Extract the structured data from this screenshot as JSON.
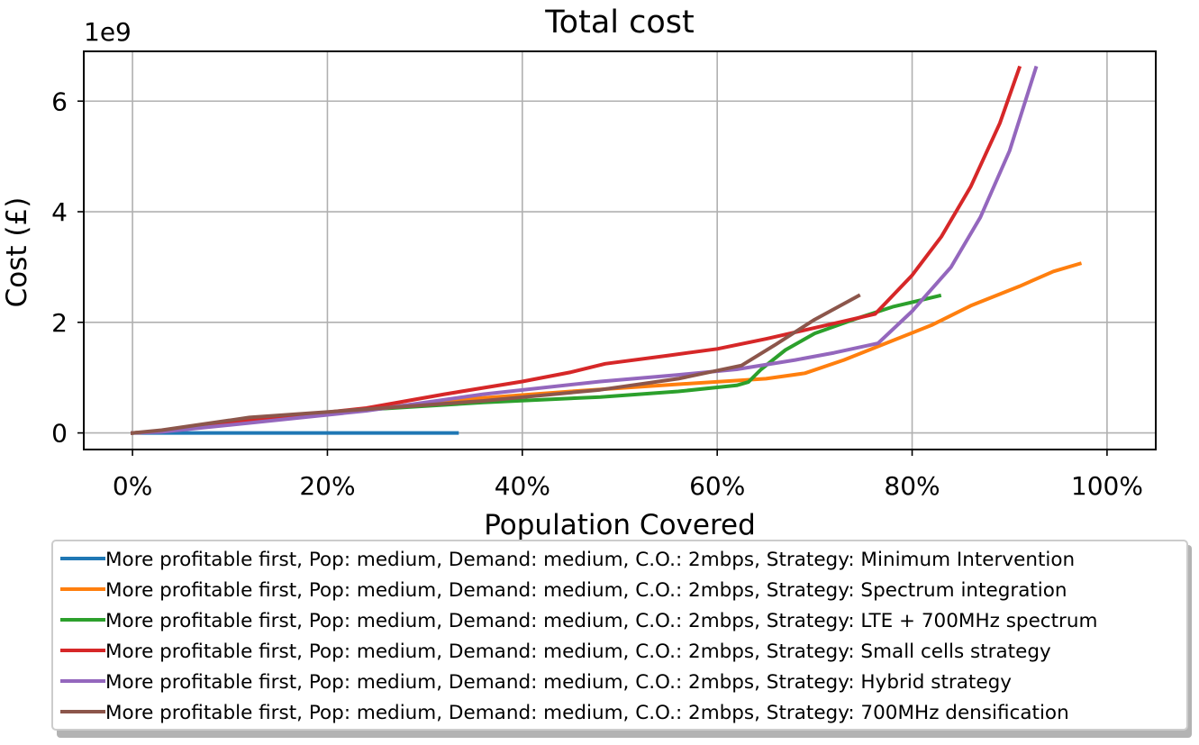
{
  "chart_data": {
    "type": "line",
    "title": "Total cost",
    "xlabel": "Population Covered",
    "ylabel": "Cost (£)",
    "y_offset_label": "1e9",
    "xlim": [
      -0.05,
      1.05
    ],
    "ylim": [
      -0.3,
      6.9
    ],
    "x_ticks": [
      0,
      0.2,
      0.4,
      0.6,
      0.8,
      1.0
    ],
    "x_tick_labels": [
      "0%",
      "20%",
      "40%",
      "60%",
      "80%",
      "100%"
    ],
    "y_ticks": [
      0,
      2,
      4,
      6
    ],
    "y_tick_labels": [
      "0",
      "2",
      "4",
      "6"
    ],
    "grid": true,
    "legend_position": "below",
    "series": [
      {
        "name": "More profitable first, Pop: medium, Demand: medium, C.O.: 2mbps, Strategy: Minimum Intervention",
        "color": "#1f77b4",
        "x": [
          0,
          0.05,
          0.1,
          0.2,
          0.3,
          0.333
        ],
        "y": [
          0,
          0,
          0,
          0,
          0,
          0
        ]
      },
      {
        "name": "More profitable first, Pop: medium, Demand: medium, C.O.: 2mbps, Strategy: Spectrum integration",
        "color": "#ff7f0e",
        "x": [
          0,
          0.03,
          0.12,
          0.25,
          0.35,
          0.45,
          0.55,
          0.65,
          0.69,
          0.73,
          0.77,
          0.82,
          0.86,
          0.91,
          0.945,
          0.972
        ],
        "y": [
          0,
          0.03,
          0.25,
          0.45,
          0.62,
          0.75,
          0.87,
          0.98,
          1.08,
          1.32,
          1.6,
          1.95,
          2.3,
          2.65,
          2.92,
          3.06
        ]
      },
      {
        "name": "More profitable first, Pop: medium, Demand: medium, C.O.: 2mbps, Strategy: LTE + 700MHz spectrum",
        "color": "#2ca02c",
        "x": [
          0,
          0.03,
          0.12,
          0.24,
          0.36,
          0.48,
          0.56,
          0.62,
          0.632,
          0.645,
          0.67,
          0.7,
          0.74,
          0.78,
          0.828
        ],
        "y": [
          0,
          0.03,
          0.22,
          0.42,
          0.55,
          0.65,
          0.75,
          0.86,
          0.92,
          1.15,
          1.5,
          1.8,
          2.05,
          2.28,
          2.48
        ]
      },
      {
        "name": "More profitable first, Pop: medium, Demand: medium, C.O.: 2mbps, Strategy: Small cells strategy",
        "color": "#d62728",
        "x": [
          0,
          0.03,
          0.12,
          0.24,
          0.32,
          0.4,
          0.45,
          0.485,
          0.55,
          0.6,
          0.65,
          0.7,
          0.73,
          0.762,
          0.8,
          0.83,
          0.86,
          0.89,
          0.91
        ],
        "y": [
          0,
          0.03,
          0.22,
          0.45,
          0.7,
          0.93,
          1.1,
          1.25,
          1.4,
          1.52,
          1.7,
          1.9,
          2.02,
          2.15,
          2.85,
          3.55,
          4.45,
          5.6,
          6.6
        ]
      },
      {
        "name": "More profitable first, Pop: medium, Demand: medium, C.O.: 2mbps, Strategy: Hybrid strategy",
        "color": "#9467bd",
        "x": [
          0,
          0.03,
          0.12,
          0.24,
          0.36,
          0.48,
          0.56,
          0.62,
          0.68,
          0.72,
          0.765,
          0.8,
          0.84,
          0.87,
          0.9,
          0.927
        ],
        "y": [
          0,
          0.02,
          0.18,
          0.4,
          0.7,
          0.93,
          1.05,
          1.15,
          1.32,
          1.45,
          1.62,
          2.2,
          3.0,
          3.9,
          5.1,
          6.6
        ]
      },
      {
        "name": "More profitable first, Pop: medium, Demand: medium, C.O.: 2mbps, Strategy: 700MHz densification",
        "color": "#8c564b",
        "x": [
          0,
          0.03,
          0.12,
          0.24,
          0.36,
          0.48,
          0.56,
          0.625,
          0.66,
          0.7,
          0.745
        ],
        "y": [
          0,
          0.05,
          0.28,
          0.43,
          0.58,
          0.78,
          0.98,
          1.22,
          1.6,
          2.05,
          2.48
        ]
      }
    ]
  }
}
